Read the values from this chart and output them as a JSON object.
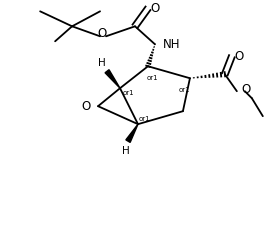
{
  "background_color": "#ffffff",
  "figsize": [
    2.7,
    2.36
  ],
  "dpi": 100,
  "line_color": "#000000",
  "text_color": "#000000",
  "font_size": 7.5,
  "lw": 1.3,
  "xlim": [
    0,
    270
  ],
  "ylim": [
    0,
    236
  ]
}
